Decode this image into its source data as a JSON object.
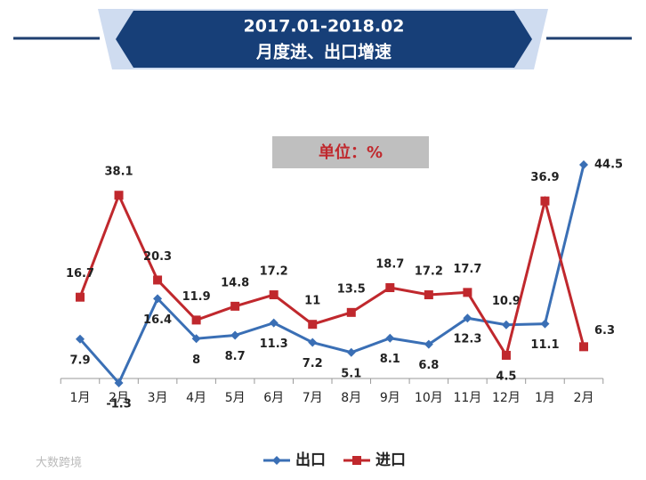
{
  "chart_data": {
    "type": "line",
    "title": "2017.01-2018.02",
    "subtitle": "月度进、出口增速",
    "unit": "单位：%",
    "categories": [
      "1月",
      "2月",
      "3月",
      "4月",
      "5月",
      "6月",
      "7月",
      "8月",
      "9月",
      "10月",
      "11月",
      "12月",
      "1月",
      "2月"
    ],
    "series": [
      {
        "name": "出口",
        "color": "#3a6fb5",
        "marker": "diamond",
        "values": [
          7.9,
          -1.3,
          16.4,
          8,
          8.7,
          11.3,
          7.2,
          5.1,
          8.1,
          6.8,
          12.3,
          10.9,
          11.1,
          44.5
        ]
      },
      {
        "name": "进口",
        "color": "#c0282d",
        "marker": "square",
        "values": [
          16.7,
          38.1,
          20.3,
          11.9,
          14.8,
          17.2,
          11,
          13.5,
          18.7,
          17.2,
          17.7,
          4.5,
          36.9,
          6.3
        ]
      }
    ]
  },
  "watermark": "大数跨境"
}
